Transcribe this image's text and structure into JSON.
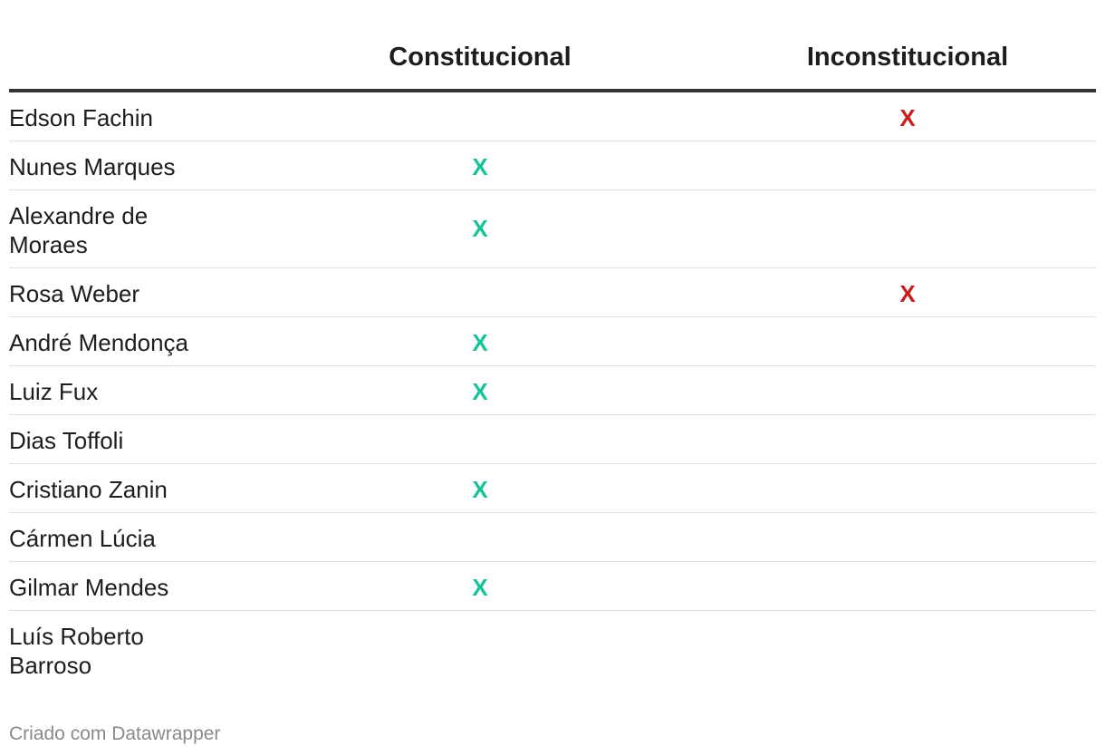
{
  "table": {
    "headers": {
      "name": "",
      "constitucional": "Constitucional",
      "inconstitucional": "Inconstitucional"
    },
    "rows": [
      {
        "name": "Edson Fachin",
        "constitucional": "",
        "inconstitucional": "X"
      },
      {
        "name": "Nunes Marques",
        "constitucional": "X",
        "inconstitucional": ""
      },
      {
        "name": "Alexandre de Moraes",
        "constitucional": "X",
        "inconstitucional": ""
      },
      {
        "name": "Rosa Weber",
        "constitucional": "",
        "inconstitucional": "X"
      },
      {
        "name": "André Mendonça",
        "constitucional": "X",
        "inconstitucional": ""
      },
      {
        "name": "Luiz Fux",
        "constitucional": "X",
        "inconstitucional": ""
      },
      {
        "name": "Dias Toffoli",
        "constitucional": "",
        "inconstitucional": ""
      },
      {
        "name": "Cristiano Zanin",
        "constitucional": "X",
        "inconstitucional": ""
      },
      {
        "name": "Cármen Lúcia",
        "constitucional": "",
        "inconstitucional": ""
      },
      {
        "name": "Gilmar Mendes",
        "constitucional": "X",
        "inconstitucional": ""
      },
      {
        "name": "Luís Roberto Barroso",
        "constitucional": "",
        "inconstitucional": ""
      }
    ]
  },
  "colors": {
    "constitucional_mark": "#15c39a",
    "inconstitucional_mark": "#c71e1d",
    "header_rule": "#333333",
    "row_divider": "#e2e2e2"
  },
  "footer": {
    "credit": "Criado com Datawrapper"
  }
}
